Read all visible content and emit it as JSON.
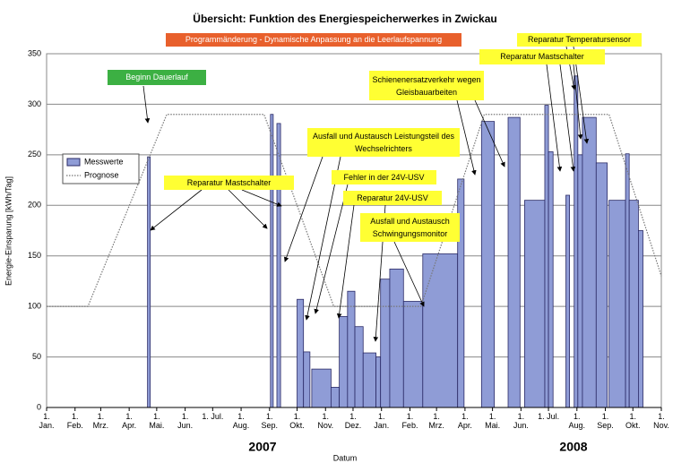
{
  "chart_data": {
    "type": "step-area",
    "title": "Übersicht: Funktion des Energiespeicherwerkes in Zwickau",
    "x_label": "Datum",
    "y_label": "Energie-Einsparung [kWh/Tag]",
    "year_labels": [
      "2007",
      "2008"
    ],
    "xlim": [
      "2007-01-01",
      "2008-11-01"
    ],
    "ylim": [
      0,
      350
    ],
    "yticks": [
      0,
      50,
      100,
      150,
      200,
      250,
      300,
      350
    ],
    "xticks": [
      {
        "value": "2007-01-01",
        "label": "1. Jan."
      },
      {
        "value": "2007-02-01",
        "label": "1. Feb."
      },
      {
        "value": "2007-03-01",
        "label": "1. Mrz."
      },
      {
        "value": "2007-04-01",
        "label": "1. Apr."
      },
      {
        "value": "2007-05-01",
        "label": "1. Mai."
      },
      {
        "value": "2007-06-01",
        "label": "1. Jun."
      },
      {
        "value": "2007-07-01",
        "label": "1. Jul."
      },
      {
        "value": "2007-08-01",
        "label": "1. Aug."
      },
      {
        "value": "2007-09-01",
        "label": "1. Sep."
      },
      {
        "value": "2007-10-01",
        "label": "1. Okt."
      },
      {
        "value": "2007-11-01",
        "label": "1. Nov."
      },
      {
        "value": "2007-12-01",
        "label": "1. Dez."
      },
      {
        "value": "2008-01-01",
        "label": "1. Jan."
      },
      {
        "value": "2008-02-01",
        "label": "1. Feb."
      },
      {
        "value": "2008-03-01",
        "label": "1. Mrz."
      },
      {
        "value": "2008-04-01",
        "label": "1. Apr."
      },
      {
        "value": "2008-05-01",
        "label": "1. Mai."
      },
      {
        "value": "2008-06-01",
        "label": "1. Jun."
      },
      {
        "value": "2008-07-01",
        "label": "1. Jul."
      },
      {
        "value": "2008-08-01",
        "label": "1. Aug."
      },
      {
        "value": "2008-09-01",
        "label": "1. Sep."
      },
      {
        "value": "2008-10-01",
        "label": "1. Okt."
      },
      {
        "value": "2008-11-01",
        "label": "1. Nov."
      }
    ],
    "grid": true,
    "legend": "upper left",
    "series": [
      {
        "name": "Messwerte",
        "kind": "step",
        "color": "#8f9cd6",
        "x": [
          "2007-01-01",
          "2007-04-21",
          "2007-04-24",
          "2007-09-02",
          "2007-09-05",
          "2007-09-09",
          "2007-09-13",
          "2007-10-01",
          "2007-10-08",
          "2007-10-15",
          "2007-10-17",
          "2007-11-07",
          "2007-11-16",
          "2007-11-25",
          "2007-12-03",
          "2007-12-12",
          "2007-12-26",
          "2007-12-31",
          "2008-01-10",
          "2008-01-25",
          "2008-02-15",
          "2008-03-24",
          "2008-03-31",
          "2008-04-19",
          "2008-05-03",
          "2008-05-18",
          "2008-05-31",
          "2008-06-05",
          "2008-06-27",
          "2008-07-01",
          "2008-07-06",
          "2008-07-20",
          "2008-07-24",
          "2008-07-29",
          "2008-08-02",
          "2008-08-07",
          "2008-08-22",
          "2008-09-03",
          "2008-09-05",
          "2008-09-23",
          "2008-09-27",
          "2008-10-07",
          "2008-10-12",
          "2008-11-01"
        ],
        "values": [
          0,
          248,
          0,
          290,
          0,
          281,
          0,
          107,
          55,
          0,
          38,
          20,
          90,
          115,
          80,
          54,
          50,
          127,
          137,
          105,
          152,
          226,
          0,
          283,
          0,
          287,
          0,
          205,
          299,
          253,
          0,
          210,
          0,
          328,
          250,
          287,
          242,
          0,
          205,
          251,
          205,
          175,
          0,
          0
        ]
      },
      {
        "name": "Prognose",
        "kind": "line",
        "color": "#777777",
        "x": [
          "2007-01-01",
          "2007-02-15",
          "2007-05-12",
          "2007-08-26",
          "2007-11-10",
          "2008-02-13",
          "2008-04-22",
          "2008-09-05",
          "2008-11-01"
        ],
        "values": [
          100,
          100,
          290,
          290,
          100,
          100,
          290,
          290,
          130
        ]
      }
    ],
    "annotations": [
      {
        "text": "Programmänderung - Dynamische Anpassung an die Leerlaufspannung",
        "color": "#e8602c"
      },
      {
        "text": "Beginn Dauerlauf",
        "color": "#3cb043"
      },
      {
        "text": "Reparatur Mastschalter",
        "color": "#ffff33"
      },
      {
        "text": "Ausfall und Austausch Leistungsteil des Wechselrichters",
        "color": "#ffff33"
      },
      {
        "text": "Fehler in der 24V-USV",
        "color": "#ffff33"
      },
      {
        "text": "Reparatur 24V-USV",
        "color": "#ffff33"
      },
      {
        "text": "Ausfall und Austausch Schwingungsmonitor",
        "color": "#ffff33"
      },
      {
        "text": "Schienenersatzverkehr wegen Gleisbauarbeiten",
        "color": "#ffff33"
      },
      {
        "text": "Reparatur Mastschalter",
        "color": "#ffff33"
      },
      {
        "text": "Reparatur Temperatursensor",
        "color": "#ffff33"
      }
    ]
  }
}
